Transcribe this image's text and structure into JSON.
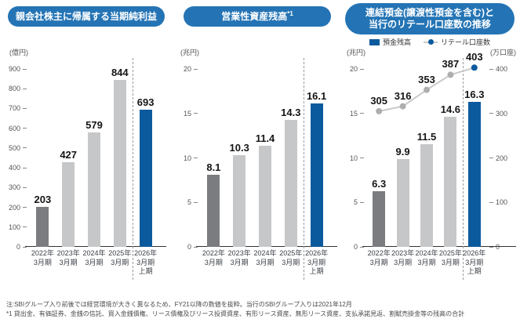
{
  "colors": {
    "pill_blue": "#2474b5",
    "blue": "#0b5a9d",
    "dark_gray": "#7b7c7f",
    "light_gray": "#c6c7c9",
    "line_gray": "#c8c9cb",
    "marker_gray": "#adaeb0"
  },
  "footnotes": {
    "line1": "注:SBIグループ入り前後では経営環境が大きく異なるため、FY21以降の数値を抜粋。当行のSBIグループ入りは2021年12月",
    "line2": "*1 貸出金、有価証券、金銭の信託、買入金銭債権、リース債権及びリース投資資産、有形リース資産、無形リース資産、支払承諾見返、割賦売掛金等の残高の合計"
  },
  "chart_data": [
    {
      "type": "bar",
      "title": "親会社株主に帰属する当期純利益",
      "title_lines": [
        "親会社株主に帰属する当期純利益"
      ],
      "unit_left": "(億円)",
      "categories": [
        [
          "2022年",
          "3月期"
        ],
        [
          "2023年",
          "3月期"
        ],
        [
          "2024年",
          "3月期"
        ],
        [
          "2025年",
          "3月期"
        ],
        [
          "2026年",
          "3月期",
          "上期"
        ]
      ],
      "values": [
        203,
        427,
        579,
        844,
        693
      ],
      "bar_colors": [
        "dark_gray",
        "light_gray",
        "light_gray",
        "light_gray",
        "blue"
      ],
      "ylim": [
        0,
        900
      ],
      "yticks": [
        0,
        100,
        200,
        300,
        400,
        500,
        600,
        700,
        800,
        900
      ],
      "grid": false,
      "legend_position": "none"
    },
    {
      "type": "bar",
      "title": "営業性資産残高*1",
      "title_lines": [
        "営業性資産残高"
      ],
      "title_sup": "*1",
      "unit_left": "(兆円)",
      "categories": [
        [
          "2022年",
          "3月期"
        ],
        [
          "2023年",
          "3月期"
        ],
        [
          "2024年",
          "3月期"
        ],
        [
          "2025年",
          "3月期"
        ],
        [
          "2026年",
          "3月期",
          "上期"
        ]
      ],
      "values": [
        8.1,
        10.3,
        11.4,
        14.3,
        16.1
      ],
      "bar_colors": [
        "dark_gray",
        "light_gray",
        "light_gray",
        "light_gray",
        "blue"
      ],
      "ylim": [
        0,
        20
      ],
      "yticks": [
        0,
        5,
        10,
        15,
        20
      ],
      "grid": false,
      "legend_position": "none"
    },
    {
      "type": "bar+line",
      "title": "連結預金(譲渡性預金を含む)と当行のリテール口座数の推移",
      "title_lines": [
        "連結預金(譲渡性預金を含む)と",
        "当行のリテール口座数の推移"
      ],
      "legend": [
        {
          "label": "預金残高",
          "marker": "square"
        },
        {
          "label": "リテール口座数",
          "marker": "line-dot"
        }
      ],
      "legend_position": "top",
      "unit_left": "(兆円)",
      "unit_right": "(万口座)",
      "categories": [
        [
          "2022年",
          "3月期"
        ],
        [
          "2023年",
          "3月期"
        ],
        [
          "2024年",
          "3月期"
        ],
        [
          "2025年",
          "3月期"
        ],
        [
          "2026年",
          "3月期",
          "上期"
        ]
      ],
      "series": [
        {
          "name": "預金残高",
          "type": "bar",
          "axis": "left",
          "values": [
            6.3,
            9.9,
            11.5,
            14.6,
            16.3
          ],
          "bar_colors": [
            "dark_gray",
            "light_gray",
            "light_gray",
            "light_gray",
            "blue"
          ]
        },
        {
          "name": "リテール口座数",
          "type": "line",
          "axis": "right",
          "values": [
            305,
            316,
            353,
            387,
            403
          ],
          "point_colors": [
            "gray",
            "gray",
            "gray",
            "gray",
            "blue"
          ]
        }
      ],
      "ylim": [
        0,
        20
      ],
      "yticks": [
        0,
        5,
        10,
        15,
        20
      ],
      "y2lim": [
        0,
        400
      ],
      "y2ticks": [
        0,
        100,
        200,
        300,
        400
      ],
      "grid": false
    }
  ]
}
